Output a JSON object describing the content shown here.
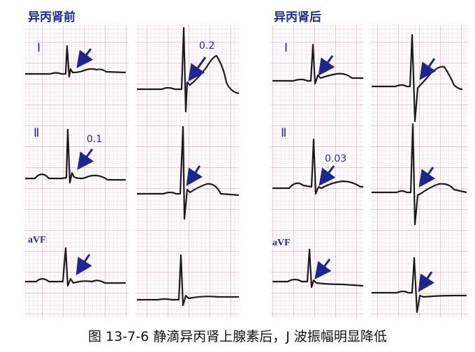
{
  "before_title": "异丙肾前",
  "after_title": "异丙肾后",
  "leads": {
    "I": "Ⅰ",
    "II": "Ⅱ",
    "aVF": "aVF"
  },
  "values": {
    "before_lead2": "0.1",
    "before_v": "0.2",
    "after_lead2": "0.03"
  },
  "caption": "图 13-7-6    静滴异丙肾上腺素后，J 波振幅明显降低",
  "colors": {
    "grid_minor": "#f2bccb",
    "grid_major": "#e48ea5",
    "trace": "#1a1a1a",
    "arrow": "#1c2590",
    "label": "#1f2a9a"
  }
}
